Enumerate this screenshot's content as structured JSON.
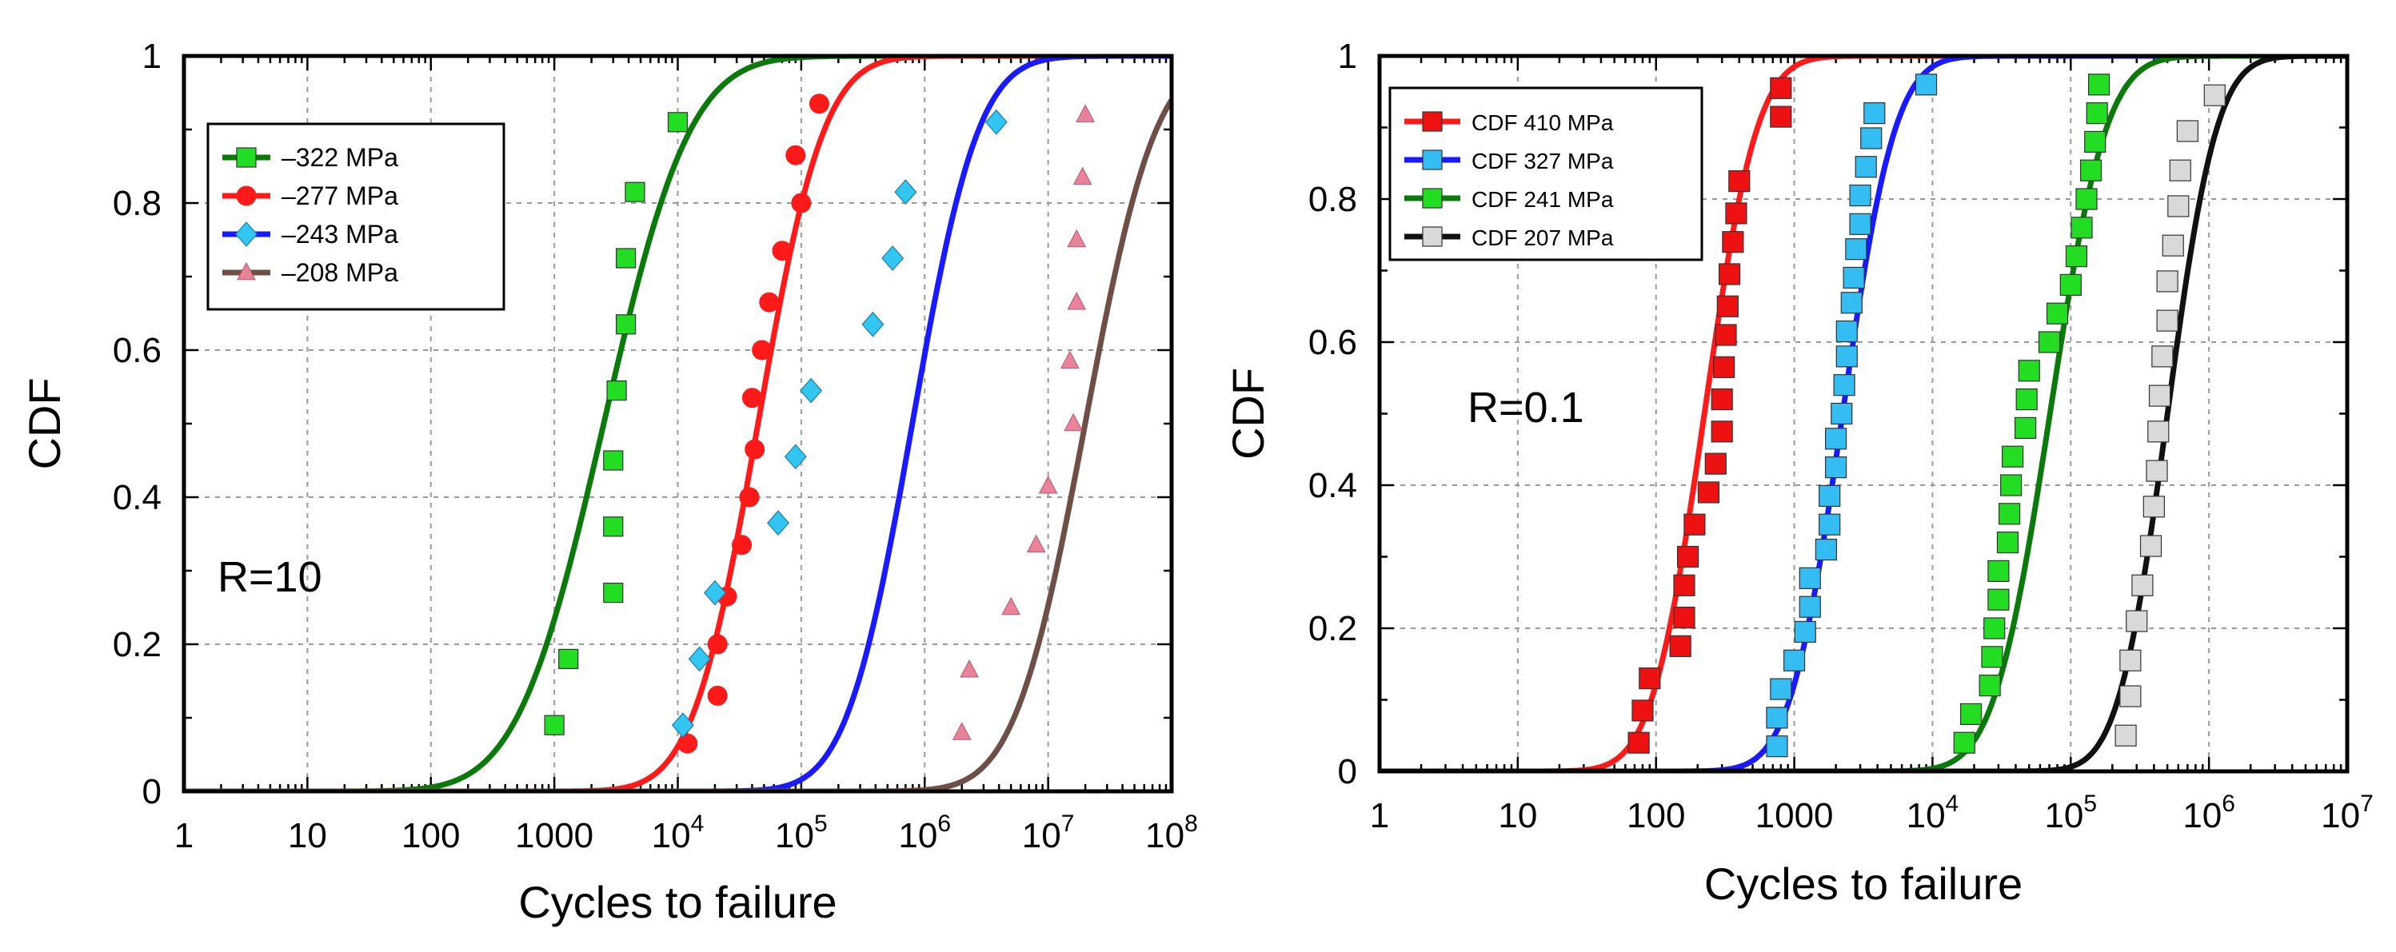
{
  "chart_data": [
    {
      "type": "line",
      "xscale": "log",
      "xlim": [
        1,
        100000000
      ],
      "ylim": [
        0,
        1
      ],
      "xlabel": "Cycles to failure",
      "ylabel": "CDF",
      "grid": true,
      "legend_position": "top-left",
      "annotation": "R=10",
      "x_tick_labels": [
        {
          "base": "1",
          "exp": ""
        },
        {
          "base": "10",
          "exp": ""
        },
        {
          "base": "100",
          "exp": ""
        },
        {
          "base": "1000",
          "exp": ""
        },
        {
          "base": "10",
          "exp": "4"
        },
        {
          "base": "10",
          "exp": "5"
        },
        {
          "base": "10",
          "exp": "6"
        },
        {
          "base": "10",
          "exp": "7"
        },
        {
          "base": "10",
          "exp": "8"
        }
      ],
      "y_tick_labels": [
        "0",
        "0.2",
        "0.4",
        "0.6",
        "0.8",
        "1"
      ],
      "series": [
        {
          "name": "–322 MPa",
          "color": "#0a7a0a",
          "marker": "square",
          "marker_color": "#22dd22",
          "fit_log10_median": 3.4,
          "fit_log10_sigma": 0.55,
          "points": [
            [
              1000,
              0.09
            ],
            [
              1300,
              0.18
            ],
            [
              3000,
              0.27
            ],
            [
              3000,
              0.36
            ],
            [
              3000,
              0.45
            ],
            [
              3200,
              0.545
            ],
            [
              3800,
              0.635
            ],
            [
              3800,
              0.725
            ],
            [
              4500,
              0.815
            ],
            [
              10000,
              0.91
            ]
          ]
        },
        {
          "name": "–277 MPa",
          "color": "#ff1a1a",
          "marker": "circle",
          "marker_color": "#ff1a1a",
          "fit_log10_median": 4.65,
          "fit_log10_sigma": 0.42,
          "points": [
            [
              12000,
              0.065
            ],
            [
              21000,
              0.13
            ],
            [
              21000,
              0.2
            ],
            [
              25000,
              0.265
            ],
            [
              33000,
              0.335
            ],
            [
              38000,
              0.4
            ],
            [
              42000,
              0.465
            ],
            [
              40000,
              0.535
            ],
            [
              48000,
              0.6
            ],
            [
              55000,
              0.665
            ],
            [
              70000,
              0.735
            ],
            [
              100000,
              0.8
            ],
            [
              90000,
              0.865
            ],
            [
              140000,
              0.935
            ]
          ]
        },
        {
          "name": "–243 MPa",
          "color": "#1a1aff",
          "marker": "diamond",
          "marker_color": "#33c6f0",
          "fit_log10_median": 5.9,
          "fit_log10_sigma": 0.42,
          "points": [
            [
              11000,
              0.09
            ],
            [
              15000,
              0.18
            ],
            [
              20000,
              0.27
            ],
            [
              65000,
              0.365
            ],
            [
              90000,
              0.455
            ],
            [
              120000,
              0.545
            ],
            [
              380000,
              0.635
            ],
            [
              550000,
              0.725
            ],
            [
              700000,
              0.815
            ],
            [
              3800000,
              0.91
            ]
          ]
        },
        {
          "name": "–208 MPa",
          "color": "#6e4f45",
          "marker": "triangle",
          "marker_color": "#e9839a",
          "fit_log10_median": 7.3,
          "fit_log10_sigma": 0.45,
          "points": [
            [
              2000000,
              0.08
            ],
            [
              2300000,
              0.165
            ],
            [
              5000000,
              0.25
            ],
            [
              8000000,
              0.335
            ],
            [
              10000000,
              0.415
            ],
            [
              16000000,
              0.5
            ],
            [
              15000000,
              0.585
            ],
            [
              17000000,
              0.665
            ],
            [
              17000000,
              0.75
            ],
            [
              19000000,
              0.835
            ],
            [
              20000000,
              0.92
            ]
          ]
        }
      ]
    },
    {
      "type": "line",
      "xscale": "log",
      "xlim": [
        1,
        10000000
      ],
      "ylim": [
        0,
        1
      ],
      "xlabel": "Cycles to failure",
      "ylabel": "CDF",
      "grid": true,
      "legend_position": "top-left",
      "annotation": "R=0.1",
      "x_tick_labels": [
        {
          "base": "1",
          "exp": ""
        },
        {
          "base": "10",
          "exp": ""
        },
        {
          "base": "100",
          "exp": ""
        },
        {
          "base": "1000",
          "exp": ""
        },
        {
          "base": "10",
          "exp": "4"
        },
        {
          "base": "10",
          "exp": "5"
        },
        {
          "base": "10",
          "exp": "6"
        },
        {
          "base": "10",
          "exp": "7"
        }
      ],
      "y_tick_labels": [
        "0",
        "0.2",
        "0.4",
        "0.6",
        "0.8",
        "1"
      ],
      "series": [
        {
          "name": "CDF 410 MPa",
          "color": "#ff1a1a",
          "marker": "square",
          "marker_color": "#ee1111",
          "fit_log10_median": 2.35,
          "fit_log10_sigma": 0.3,
          "points": [
            [
              75,
              0.04
            ],
            [
              80,
              0.085
            ],
            [
              90,
              0.13
            ],
            [
              150,
              0.175
            ],
            [
              160,
              0.215
            ],
            [
              160,
              0.26
            ],
            [
              170,
              0.3
            ],
            [
              190,
              0.345
            ],
            [
              240,
              0.39
            ],
            [
              270,
              0.43
            ],
            [
              300,
              0.475
            ],
            [
              300,
              0.52
            ],
            [
              310,
              0.565
            ],
            [
              320,
              0.61
            ],
            [
              330,
              0.65
            ],
            [
              340,
              0.695
            ],
            [
              360,
              0.74
            ],
            [
              380,
              0.78
            ],
            [
              400,
              0.825
            ],
            [
              800,
              0.915
            ],
            [
              800,
              0.955
            ]
          ]
        },
        {
          "name": "CDF 327 MPa",
          "color": "#1a1aff",
          "marker": "square",
          "marker_color": "#33bdf2",
          "fit_log10_median": 3.35,
          "fit_log10_sigma": 0.3,
          "points": [
            [
              750,
              0.035
            ],
            [
              750,
              0.075
            ],
            [
              800,
              0.115
            ],
            [
              1000,
              0.155
            ],
            [
              1200,
              0.195
            ],
            [
              1300,
              0.23
            ],
            [
              1300,
              0.27
            ],
            [
              1700,
              0.31
            ],
            [
              1800,
              0.345
            ],
            [
              1800,
              0.385
            ],
            [
              2000,
              0.425
            ],
            [
              2000,
              0.465
            ],
            [
              2200,
              0.5
            ],
            [
              2300,
              0.54
            ],
            [
              2400,
              0.58
            ],
            [
              2400,
              0.615
            ],
            [
              2600,
              0.655
            ],
            [
              2700,
              0.69
            ],
            [
              2800,
              0.73
            ],
            [
              3000,
              0.765
            ],
            [
              3000,
              0.805
            ],
            [
              3300,
              0.845
            ],
            [
              3600,
              0.885
            ],
            [
              3800,
              0.92
            ],
            [
              9000,
              0.96
            ]
          ]
        },
        {
          "name": "CDF 241 MPa",
          "color": "#0a7a0a",
          "marker": "square",
          "marker_color": "#22dd22",
          "fit_log10_median": 4.85,
          "fit_log10_sigma": 0.32,
          "points": [
            [
              17000,
              0.04
            ],
            [
              19000,
              0.08
            ],
            [
              26000,
              0.12
            ],
            [
              27000,
              0.16
            ],
            [
              28000,
              0.2
            ],
            [
              30000,
              0.24
            ],
            [
              30000,
              0.28
            ],
            [
              35000,
              0.32
            ],
            [
              36000,
              0.36
            ],
            [
              37000,
              0.4
            ],
            [
              38000,
              0.44
            ],
            [
              47000,
              0.48
            ],
            [
              48000,
              0.52
            ],
            [
              50000,
              0.56
            ],
            [
              70000,
              0.6
            ],
            [
              80000,
              0.64
            ],
            [
              100000,
              0.68
            ],
            [
              110000,
              0.72
            ],
            [
              120000,
              0.76
            ],
            [
              130000,
              0.8
            ],
            [
              140000,
              0.84
            ],
            [
              150000,
              0.88
            ],
            [
              155000,
              0.92
            ],
            [
              160000,
              0.96
            ]
          ]
        },
        {
          "name": "CDF  207 MPa",
          "color": "#111111",
          "marker": "square",
          "marker_color": "#d9d9d9",
          "fit_log10_median": 5.7,
          "fit_log10_sigma": 0.28,
          "points": [
            [
              250000,
              0.05
            ],
            [
              270000,
              0.105
            ],
            [
              270000,
              0.155
            ],
            [
              300000,
              0.21
            ],
            [
              330000,
              0.26
            ],
            [
              380000,
              0.315
            ],
            [
              400000,
              0.37
            ],
            [
              420000,
              0.42
            ],
            [
              430000,
              0.475
            ],
            [
              440000,
              0.525
            ],
            [
              460000,
              0.58
            ],
            [
              500000,
              0.63
            ],
            [
              500000,
              0.685
            ],
            [
              550000,
              0.735
            ],
            [
              600000,
              0.79
            ],
            [
              620000,
              0.84
            ],
            [
              700000,
              0.895
            ],
            [
              1100000,
              0.945
            ]
          ]
        }
      ]
    }
  ]
}
